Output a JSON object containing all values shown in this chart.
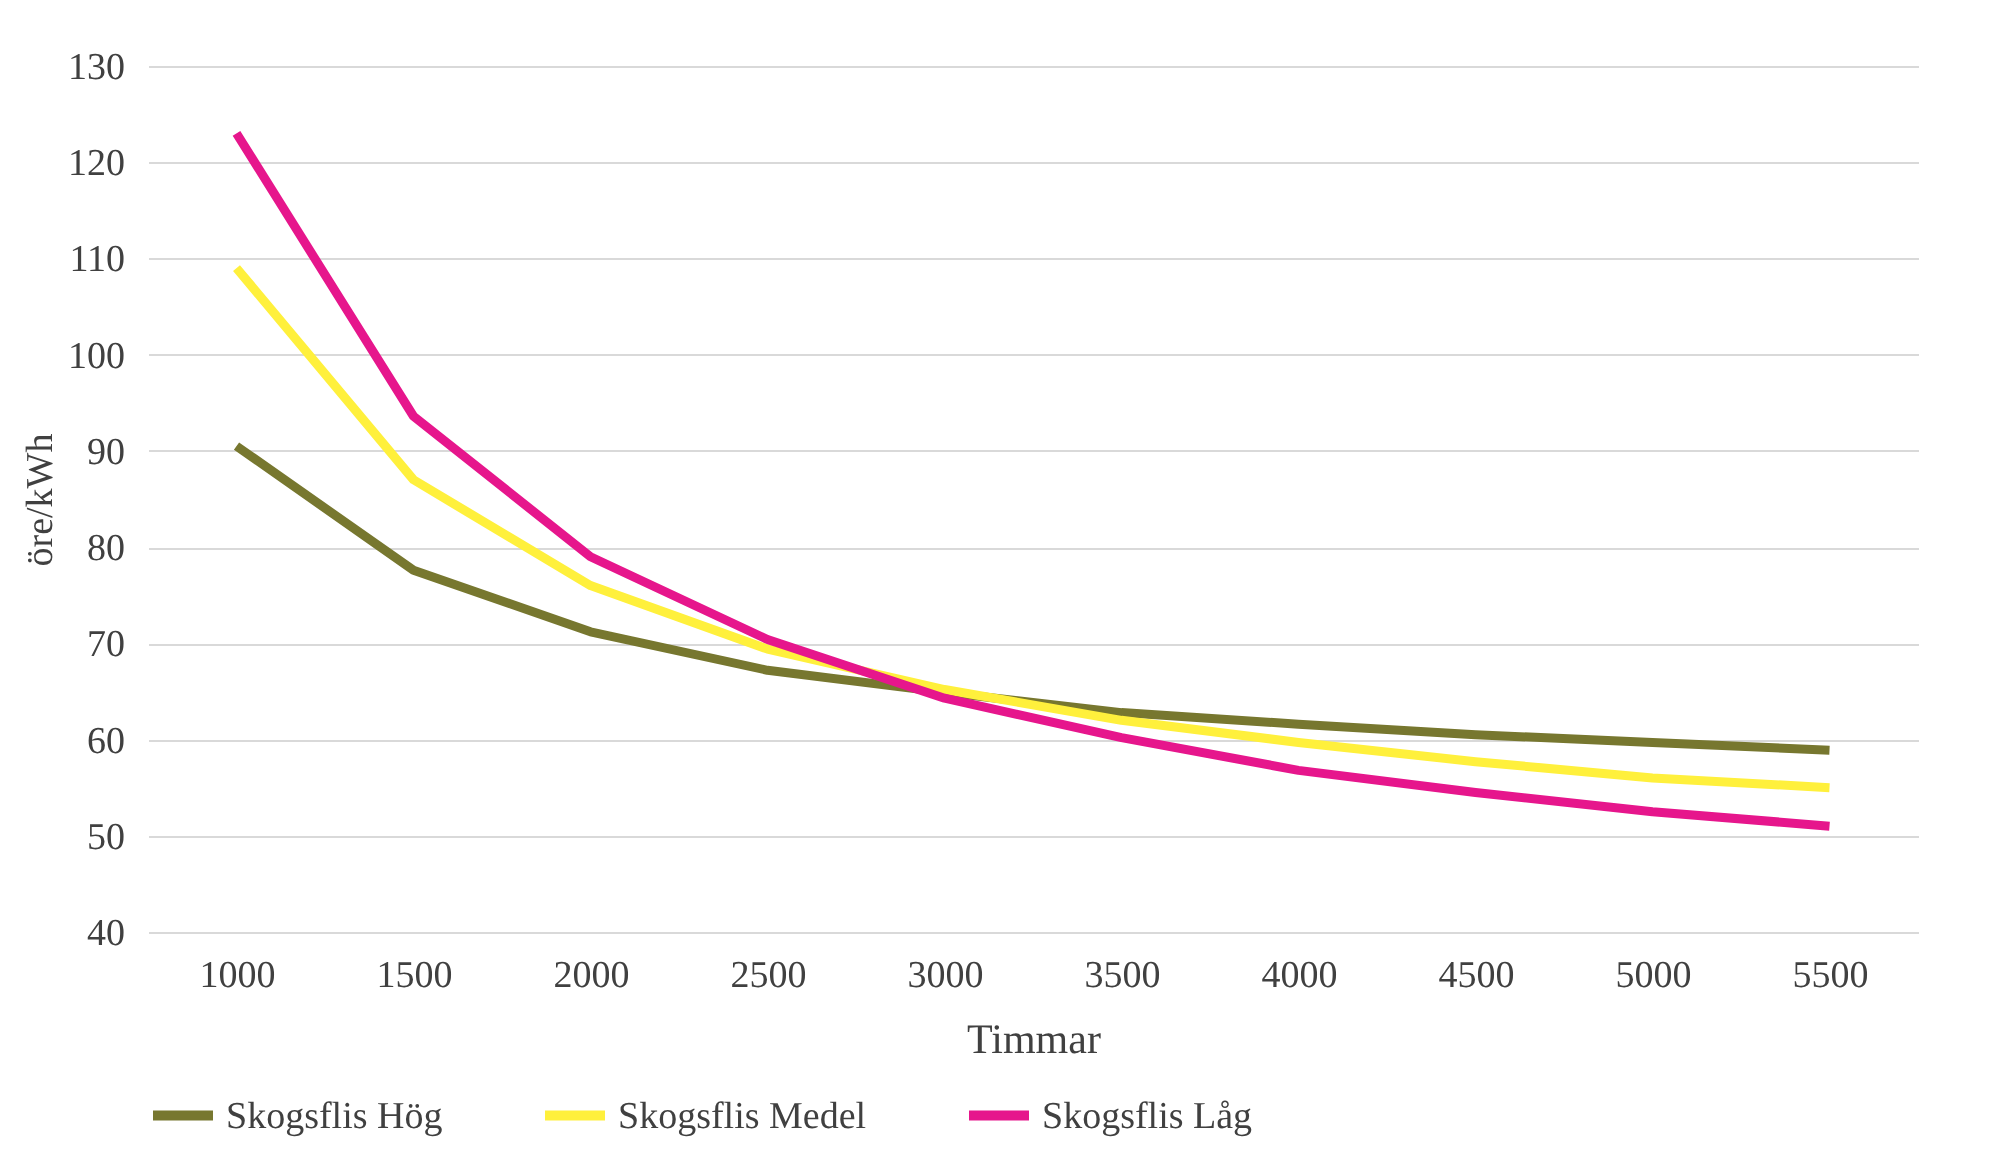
{
  "chart_data": {
    "type": "line",
    "xlabel": "Timmar",
    "ylabel": "öre/kWh",
    "categories": [
      "1000",
      "1500",
      "2000",
      "2500",
      "3000",
      "3500",
      "4000",
      "4500",
      "5000",
      "5500"
    ],
    "series": [
      {
        "name": "Skogsflis Hög",
        "color": "#77772f",
        "values": [
          90.5,
          77.6,
          71.2,
          67.2,
          64.9,
          62.8,
          61.6,
          60.5,
          59.7,
          58.9
        ]
      },
      {
        "name": "Skogsflis Medel",
        "color": "#fff03c",
        "values": [
          109,
          87,
          76,
          69.4,
          65.2,
          62,
          59.7,
          57.7,
          56,
          55
        ]
      },
      {
        "name": "Skogsflis Låg",
        "color": "#e6168c",
        "values": [
          123,
          93.6,
          79,
          70.4,
          64.3,
          60.2,
          56.8,
          54.5,
          52.5,
          51
        ]
      }
    ],
    "ylim": [
      40,
      130
    ],
    "yticks": [
      40,
      50,
      60,
      70,
      80,
      90,
      100,
      110,
      120,
      130
    ],
    "grid": "y",
    "legend": "bottom",
    "marker": "none",
    "line_style": "solid"
  }
}
